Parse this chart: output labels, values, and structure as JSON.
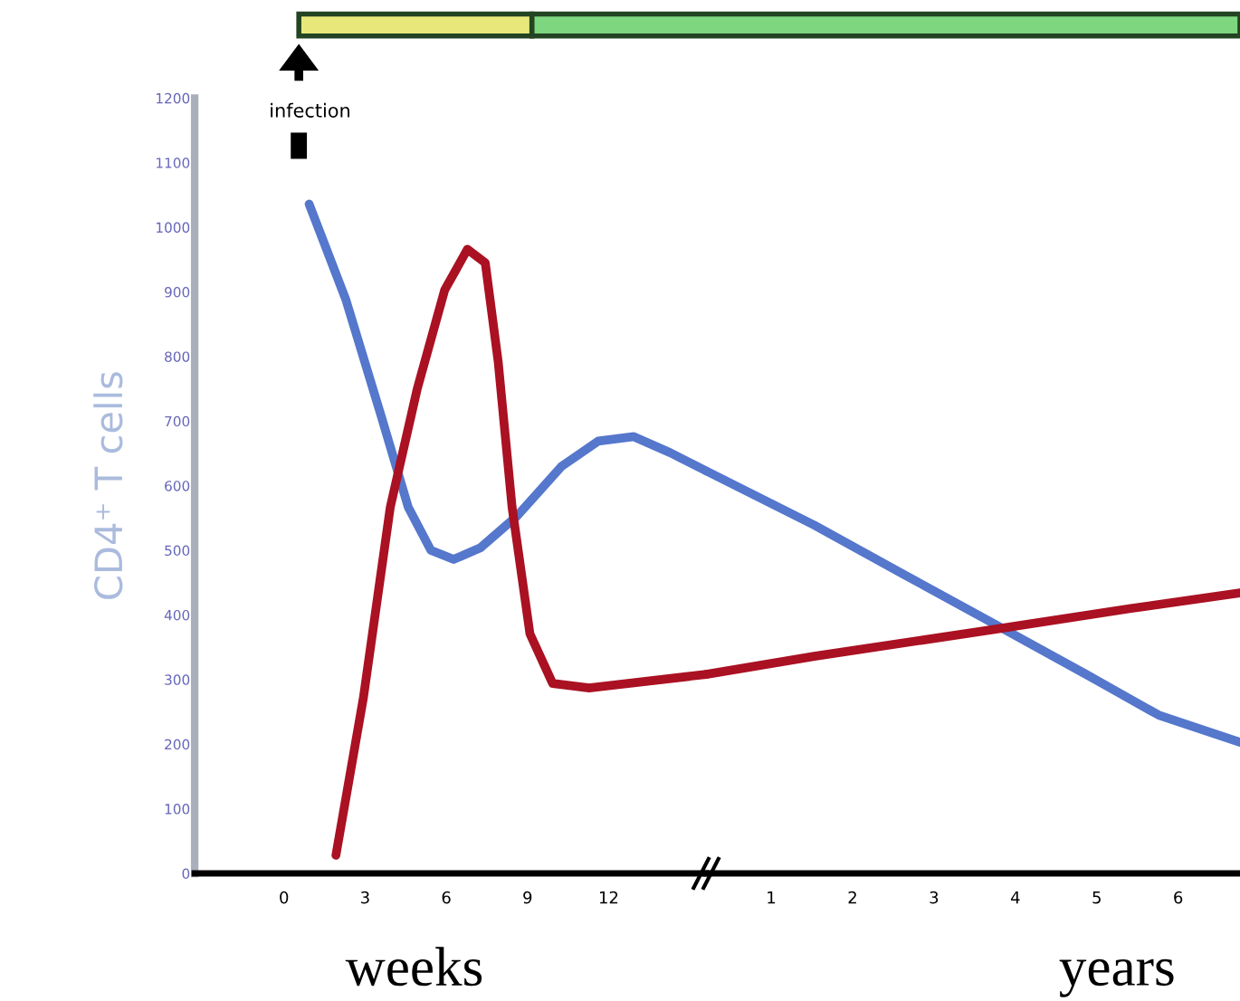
{
  "chart_data": [
    {
      "type": "line",
      "ylabel": "CD4⁺ T cells",
      "xlabel": "weeks",
      "xlim": [
        -3.3,
        15.6
      ],
      "ylim": [
        0,
        1200
      ],
      "xticks": [
        0,
        3,
        6,
        9,
        12
      ],
      "yticks": [
        0,
        100,
        200,
        300,
        400,
        500,
        600,
        700,
        800,
        900,
        1000,
        1100,
        1200
      ],
      "series": [
        {
          "color": "#5577cc",
          "x": [
            0.93,
            2.28,
            3.6,
            4.59,
            5.43,
            6.27,
            7.26,
            8.61,
            10.26,
            11.61,
            12.93,
            14.28,
            15.6
          ],
          "values": [
            1036,
            889,
            707,
            567,
            500,
            486,
            504,
            553,
            630,
            669,
            676,
            651,
            623
          ]
        },
        {
          "color": "#aa1122",
          "x": [
            1.92,
            2.94,
            3.93,
            4.92,
            5.94,
            6.78,
            7.44,
            7.92,
            8.43,
            9.09,
            9.93,
            11.28,
            15.6
          ],
          "values": [
            28,
            273,
            567,
            749,
            903,
            966,
            945,
            791,
            567,
            371,
            294,
            287,
            308
          ]
        }
      ],
      "annotations": [
        "infection"
      ],
      "grid": false,
      "marker": "none",
      "line_style": "solid"
    },
    {
      "type": "line",
      "xlabel": "years",
      "xlim": [
        0.2,
        6.76
      ],
      "ylim": [
        0,
        1200
      ],
      "xticks": [
        1,
        2,
        3,
        4,
        5,
        6
      ],
      "tick_labels": "x",
      "series": [
        {
          "color": "#5577cc",
          "x": [
            0.2,
            1.53,
            2.64,
            3.76,
            4.87,
            5.76,
            6.76
          ],
          "values": [
            623,
            539,
            462,
            385,
            308,
            245,
            203
          ]
        },
        {
          "color": "#aa1122",
          "x": [
            0.2,
            1.53,
            3.76,
            5.42,
            6.76
          ],
          "values": [
            308,
            336,
            378,
            410,
            434
          ]
        }
      ],
      "grid": false,
      "marker": "none",
      "line_style": "solid"
    }
  ]
}
